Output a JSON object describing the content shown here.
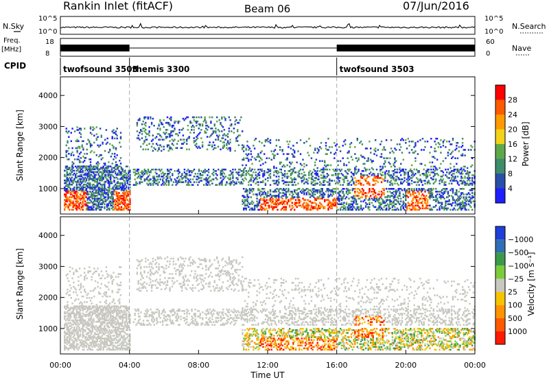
{
  "header": {
    "station": "Rankin Inlet (fitACF)",
    "beam": "Beam 06",
    "date": "07/Jun/2016"
  },
  "aux_panels": {
    "nsky_label": "N.Sky",
    "nsky_ticks": [
      "10^5",
      "10^0"
    ],
    "nsearch_label": "N.Search",
    "nsearch_ticks": [
      "10^5",
      "10^0"
    ],
    "freq_label": "Freq.",
    "freq_unit": "[MHz]",
    "freq_ticks": [
      "18",
      "8"
    ],
    "nave_label": "Nave",
    "nave_ticks": [
      "60",
      "0"
    ],
    "cpid_label": "CPID",
    "cpid_segments": [
      {
        "label": "twofsound 3503",
        "start_h": 0,
        "end_h": 4
      },
      {
        "label": "themis 3300",
        "start_h": 4,
        "end_h": 16
      },
      {
        "label": "twofsound 3503",
        "start_h": 16,
        "end_h": 24
      }
    ]
  },
  "colors": {
    "power_scale": [
      "#1f1fff",
      "#2a4fa8",
      "#3d8c6a",
      "#5fa84a",
      "#f2d21a",
      "#ff9a00",
      "#ff5a00",
      "#ff0000"
    ],
    "velocity_scale": [
      "#1f3fd8",
      "#2e6fb5",
      "#3a9a4a",
      "#7ccc3a",
      "#c8c8c0",
      "#f5c400",
      "#ff9400",
      "#ff5a00",
      "#ff1a00"
    ]
  },
  "chart_data": [
    {
      "type": "heatmap",
      "name": "power",
      "ylabel": "Slant Range [km]",
      "xlabel": "Time UT",
      "x_ticks": [
        "00:00",
        "04:00",
        "08:00",
        "12:00",
        "16:00",
        "20:00",
        "00:00"
      ],
      "xlim_hours": [
        0,
        24
      ],
      "y_ticks": [
        1000,
        2000,
        3000,
        4000
      ],
      "ylim": [
        180,
        4600
      ],
      "colorbar": {
        "label": "Power [dB]",
        "tick_labels": [
          "4",
          "8",
          "12",
          "16",
          "20",
          "24",
          "28"
        ],
        "range": [
          0,
          30
        ]
      }
    },
    {
      "type": "heatmap",
      "name": "velocity",
      "ylabel": "Slant Range [km]",
      "xlabel": "Time UT",
      "x_ticks": [
        "00:00",
        "04:00",
        "08:00",
        "12:00",
        "16:00",
        "20:00",
        "00:00"
      ],
      "xlim_hours": [
        0,
        24
      ],
      "y_ticks": [
        1000,
        2000,
        3000,
        4000
      ],
      "ylim": [
        180,
        4600
      ],
      "colorbar": {
        "label": "Velocity [m s⁻¹]",
        "tick_labels": [
          "1000",
          "500",
          "100",
          "25",
          "−25",
          "−100",
          "−500",
          "−1000"
        ],
        "range": [
          -1000,
          1000
        ]
      }
    }
  ]
}
